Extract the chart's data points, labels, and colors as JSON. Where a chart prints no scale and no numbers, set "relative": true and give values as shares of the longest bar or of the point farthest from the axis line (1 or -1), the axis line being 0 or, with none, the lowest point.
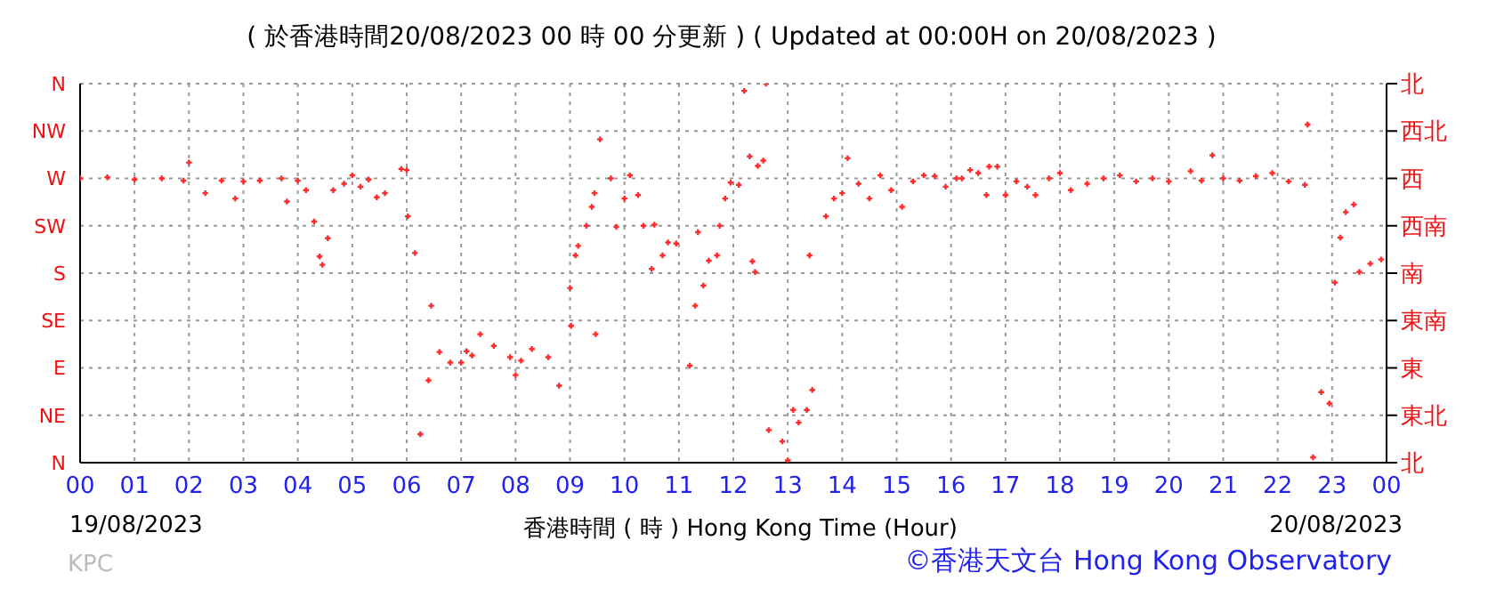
{
  "chart_data": {
    "type": "scatter",
    "title": "( 於香港時間20/08/2023 00 時 00 分更新 ) ( Updated at 00:00H on 20/08/2023 )",
    "xlabel": "香港時間 ( 時 ) Hong Kong Time (Hour)",
    "annotations": [
      "19/08/2023",
      "20/08/2023",
      "KPC",
      "©香港天文台 Hong Kong Observatory"
    ],
    "xlim": [
      0,
      24
    ],
    "xticks": [
      {
        "value": 0,
        "label": "00"
      },
      {
        "value": 1,
        "label": "01"
      },
      {
        "value": 2,
        "label": "02"
      },
      {
        "value": 3,
        "label": "03"
      },
      {
        "value": 4,
        "label": "04"
      },
      {
        "value": 5,
        "label": "05"
      },
      {
        "value": 6,
        "label": "06"
      },
      {
        "value": 7,
        "label": "07"
      },
      {
        "value": 8,
        "label": "08"
      },
      {
        "value": 9,
        "label": "09"
      },
      {
        "value": 10,
        "label": "10"
      },
      {
        "value": 11,
        "label": "11"
      },
      {
        "value": 12,
        "label": "12"
      },
      {
        "value": 13,
        "label": "13"
      },
      {
        "value": 14,
        "label": "14"
      },
      {
        "value": 15,
        "label": "15"
      },
      {
        "value": 16,
        "label": "16"
      },
      {
        "value": 17,
        "label": "17"
      },
      {
        "value": 18,
        "label": "18"
      },
      {
        "value": 19,
        "label": "19"
      },
      {
        "value": 20,
        "label": "20"
      },
      {
        "value": 21,
        "label": "21"
      },
      {
        "value": 22,
        "label": "22"
      },
      {
        "value": 23,
        "label": "23"
      },
      {
        "value": 24,
        "label": "00"
      }
    ],
    "relative": true,
    "y_categories": [
      "N",
      "NW",
      "W",
      "SW",
      "S",
      "SE",
      "E",
      "NE",
      "N"
    ],
    "y2_categories": [
      "北",
      "西北",
      "西",
      "西南",
      "南",
      "東南",
      "東",
      "東北",
      "北"
    ],
    "grid": true,
    "marker": "cross",
    "series": [
      {
        "color": "#ff2a2a",
        "x": [
          0,
          0.5,
          1,
          1.5,
          1.9,
          2.0,
          2.3,
          2.6,
          2.85,
          3.0,
          3.3,
          3.7,
          3.8,
          4.0,
          4.15,
          4.3,
          4.4,
          4.45,
          4.55,
          4.65,
          4.85,
          5.0,
          5.15,
          5.3,
          5.45,
          5.6,
          5.9,
          6.0,
          6.02,
          6.15,
          6.25,
          6.4,
          6.45,
          6.6,
          6.8,
          7.0,
          7.1,
          7.2,
          7.35,
          7.6,
          7.9,
          8.0,
          8.1,
          8.3,
          8.6,
          8.8,
          9.0,
          9.02,
          9.1,
          9.15,
          9.3,
          9.4,
          9.45,
          9.47,
          9.55,
          9.75,
          9.85,
          10.0,
          10.1,
          10.25,
          10.35,
          10.5,
          10.55,
          10.7,
          10.8,
          10.95,
          11.2,
          11.3,
          11.35,
          11.45,
          11.55,
          11.7,
          11.75,
          11.85,
          11.95,
          12.1,
          12.2,
          12.3,
          12.35,
          12.4,
          12.45,
          12.55,
          12.6,
          12.65,
          12.9,
          13.0,
          13.1,
          13.2,
          13.35,
          13.45,
          13.4,
          13.7,
          13.85,
          14.0,
          14.1,
          14.3,
          14.5,
          14.7,
          14.9,
          15.1,
          15.3,
          15.5,
          15.7,
          15.9,
          16.1,
          16.2,
          16.35,
          16.5,
          16.65,
          16.7,
          16.85,
          17.0,
          17.2,
          17.4,
          17.55,
          17.8,
          18.0,
          18.2,
          18.5,
          18.8,
          19.1,
          19.4,
          19.7,
          20.0,
          20.4,
          20.6,
          20.8,
          21.0,
          21.3,
          21.6,
          21.9,
          22.2,
          22.5,
          22.55,
          22.65,
          22.8,
          22.95,
          23.05,
          23.15,
          23.25,
          23.4,
          23.5,
          23.7,
          23.9
        ],
        "values": [
          0.75,
          0.753,
          0.747,
          0.75,
          0.744,
          0.792,
          0.711,
          0.744,
          0.697,
          0.742,
          0.744,
          0.75,
          0.689,
          0.744,
          0.719,
          0.636,
          0.544,
          0.522,
          0.592,
          0.719,
          0.736,
          0.758,
          0.728,
          0.747,
          0.7,
          0.711,
          0.775,
          0.772,
          0.65,
          0.553,
          0.075,
          0.217,
          0.414,
          0.292,
          0.264,
          0.264,
          0.294,
          0.283,
          0.339,
          0.308,
          0.278,
          0.231,
          0.269,
          0.3,
          0.278,
          0.203,
          0.461,
          0.361,
          0.547,
          0.572,
          0.625,
          0.675,
          0.711,
          0.339,
          0.853,
          0.75,
          0.622,
          0.697,
          0.758,
          0.706,
          0.625,
          0.511,
          0.628,
          0.547,
          0.581,
          0.578,
          0.256,
          0.414,
          0.608,
          0.467,
          0.533,
          0.547,
          0.625,
          0.697,
          0.739,
          0.733,
          0.981,
          0.808,
          0.531,
          0.503,
          0.783,
          0.797,
          1,
          0.086,
          0.056,
          0.006,
          0.139,
          0.106,
          0.139,
          0.192,
          0.547,
          0.65,
          0.697,
          0.711,
          0.803,
          0.736,
          0.697,
          0.758,
          0.719,
          0.675,
          0.742,
          0.758,
          0.756,
          0.728,
          0.75,
          0.75,
          0.772,
          0.764,
          0.706,
          0.781,
          0.781,
          0.706,
          0.742,
          0.728,
          0.706,
          0.75,
          0.764,
          0.719,
          0.736,
          0.75,
          0.758,
          0.742,
          0.75,
          0.742,
          0.769,
          0.744,
          0.811,
          0.75,
          0.744,
          0.756,
          0.764,
          0.742,
          0.733,
          0.892,
          0.014,
          0.186,
          0.156,
          0.475,
          0.594,
          0.661,
          0.681,
          0.503,
          0.525,
          0.536
        ]
      }
    ]
  }
}
